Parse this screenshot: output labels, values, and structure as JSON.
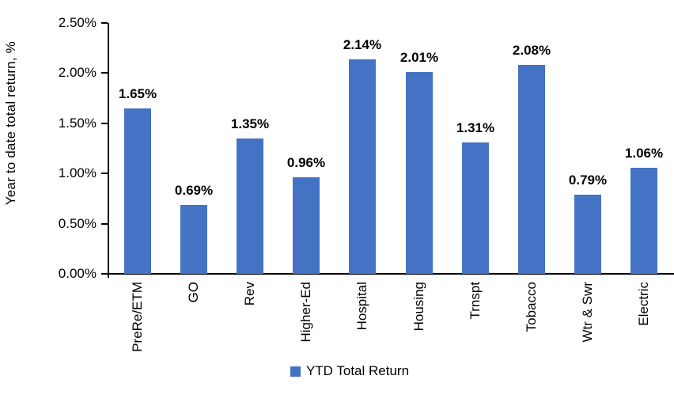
{
  "chart_data": {
    "type": "bar",
    "title": "",
    "xlabel": "",
    "ylabel": "Year to date total return, %",
    "categories": [
      "PreRe/ETM",
      "GO",
      "Rev",
      "Higher-Ed",
      "Hospital",
      "Housing",
      "Trnspt",
      "Tobacco",
      "Wtr & Swr",
      "Electric"
    ],
    "series": [
      {
        "name": "YTD Total Return",
        "values": [
          1.65,
          0.69,
          1.35,
          0.96,
          2.14,
          2.01,
          1.31,
          2.08,
          0.79,
          1.06
        ]
      }
    ],
    "value_labels": [
      "1.65%",
      "0.69%",
      "1.35%",
      "0.96%",
      "2.14%",
      "2.01%",
      "1.31%",
      "2.08%",
      "0.79%",
      "1.06%"
    ],
    "y_ticks": [
      "2.50%",
      "2.00%",
      "1.50%",
      "1.00%",
      "0.50%",
      "0.00%"
    ],
    "ylim": [
      0,
      2.5
    ],
    "grid": false,
    "bar_color": "#4472C4",
    "legend_position": "bottom"
  },
  "legend": {
    "label": "YTD Total Return",
    "swatch_color": "#4472C4"
  }
}
